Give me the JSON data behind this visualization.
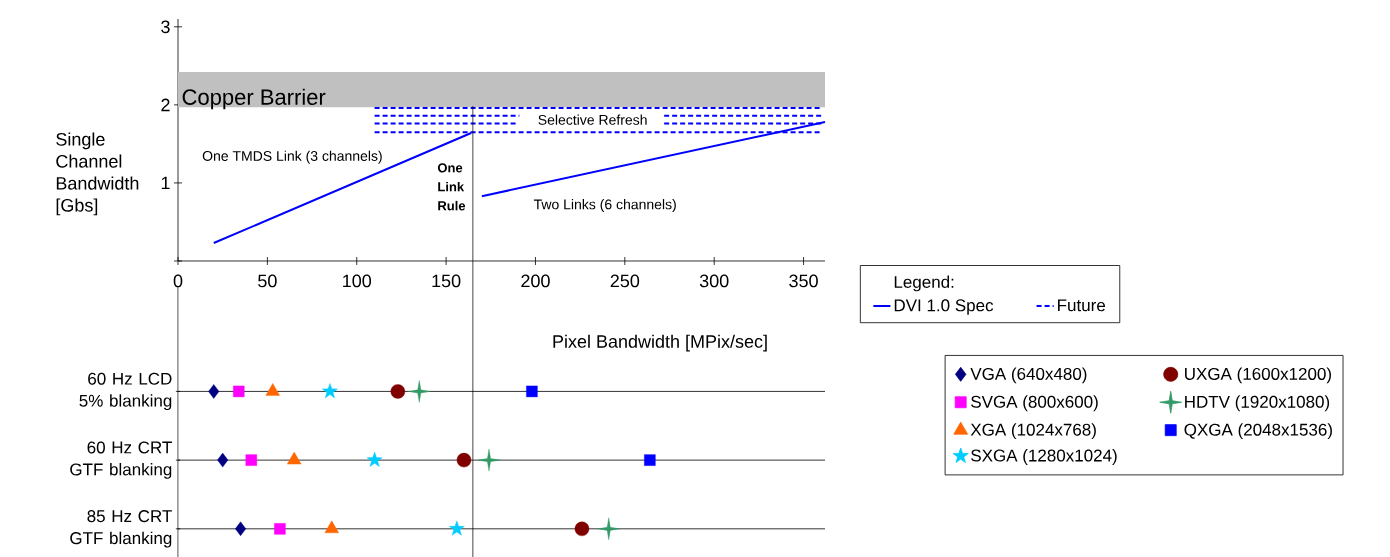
{
  "chart_data": [
    {
      "type": "line",
      "xlabel": "Pixel Bandwidth [MPix/sec]",
      "ylabel": "Single Channel Bandwidth [Gbs]",
      "legend_title": "Legend:",
      "legend": "right",
      "xlim": [
        0,
        362
      ],
      "ylim": [
        0,
        3.1
      ],
      "xticks": [
        0,
        50,
        100,
        150,
        200,
        250,
        300,
        350
      ],
      "yticks": [
        {
          "value": 0,
          "label": null
        },
        1,
        2,
        3
      ],
      "series": [
        {
          "name": "DVI 1.0 Spec",
          "color": "#0000ff",
          "line_style": "solid",
          "x": [
            20,
            164,
            167,
            170,
            362
          ],
          "values": [
            0.23,
            1.64,
            null,
            0.83,
            1.78
          ]
        },
        {
          "name": "Future",
          "color": "#0000ff",
          "line_style": "dashed",
          "x": [
            110,
            360
          ],
          "values": [
            1.96,
            1.96
          ]
        },
        {
          "color": "#0000ff",
          "line_style": "dashed",
          "x": [
            110,
            191,
            231,
            272,
            360
          ],
          "values": [
            1.86,
            1.86,
            null,
            1.86,
            1.86
          ]
        },
        {
          "color": "#0000ff",
          "line_style": "dashed",
          "x": [
            110,
            189,
            231,
            272,
            360
          ],
          "values": [
            1.76,
            1.76,
            null,
            1.76,
            1.76
          ]
        },
        {
          "color": "#0000ff",
          "line_style": "dashed",
          "x": [
            110,
            360
          ],
          "values": [
            1.65,
            1.65
          ]
        }
      ],
      "bands": [
        {
          "axis": "y",
          "from": 1.97,
          "to": 2.42,
          "label": "Copper Barrier",
          "color": "#c0c0c0"
        }
      ],
      "ref_lines": [
        {
          "axis": "x",
          "value": 165,
          "label": "One Link Rule"
        }
      ],
      "annotations": [
        "One TMDS Link (3 channels)",
        "Two Links (6 channels)",
        "Selective Refresh"
      ]
    },
    {
      "type": "scatter",
      "orientation": "horizontal",
      "tick_labels": "y",
      "grid": "y",
      "legend": "right",
      "categories": [
        "60 Hz LCD 5% blanking",
        "60 Hz CRT GTF blanking",
        "85 Hz CRT GTF blanking"
      ],
      "xlim": [
        0,
        362
      ],
      "xticks": [
        0,
        50,
        100,
        150,
        200,
        250,
        300,
        350
      ],
      "series": [
        {
          "name": "VGA (640x480)",
          "color": "#000080",
          "marker": "diamond",
          "values": [
            20,
            25,
            35
          ]
        },
        {
          "name": "SVGA (800x600)",
          "color": "#ff00ff",
          "marker": "square",
          "values": [
            34,
            41,
            57
          ]
        },
        {
          "name": "XGA (1024x768)",
          "color": "#ff6600",
          "marker": "triangle",
          "values": [
            53,
            65,
            86
          ]
        },
        {
          "name": "SXGA (1280x1024)",
          "color": "#00ccff",
          "marker": "star",
          "values": [
            85,
            110,
            156
          ]
        },
        {
          "name": "UXGA (1600x1200)",
          "color": "#800000",
          "marker": "circle",
          "values": [
            123,
            160,
            226
          ]
        },
        {
          "name": "HDTV (1920x1080)",
          "color": "#339966",
          "marker": "cross",
          "values": [
            135,
            174,
            241
          ]
        },
        {
          "name": "QXGA (2048x1536)",
          "color": "#0000ff",
          "marker": "square",
          "values": [
            198,
            264,
            null
          ]
        }
      ]
    }
  ]
}
